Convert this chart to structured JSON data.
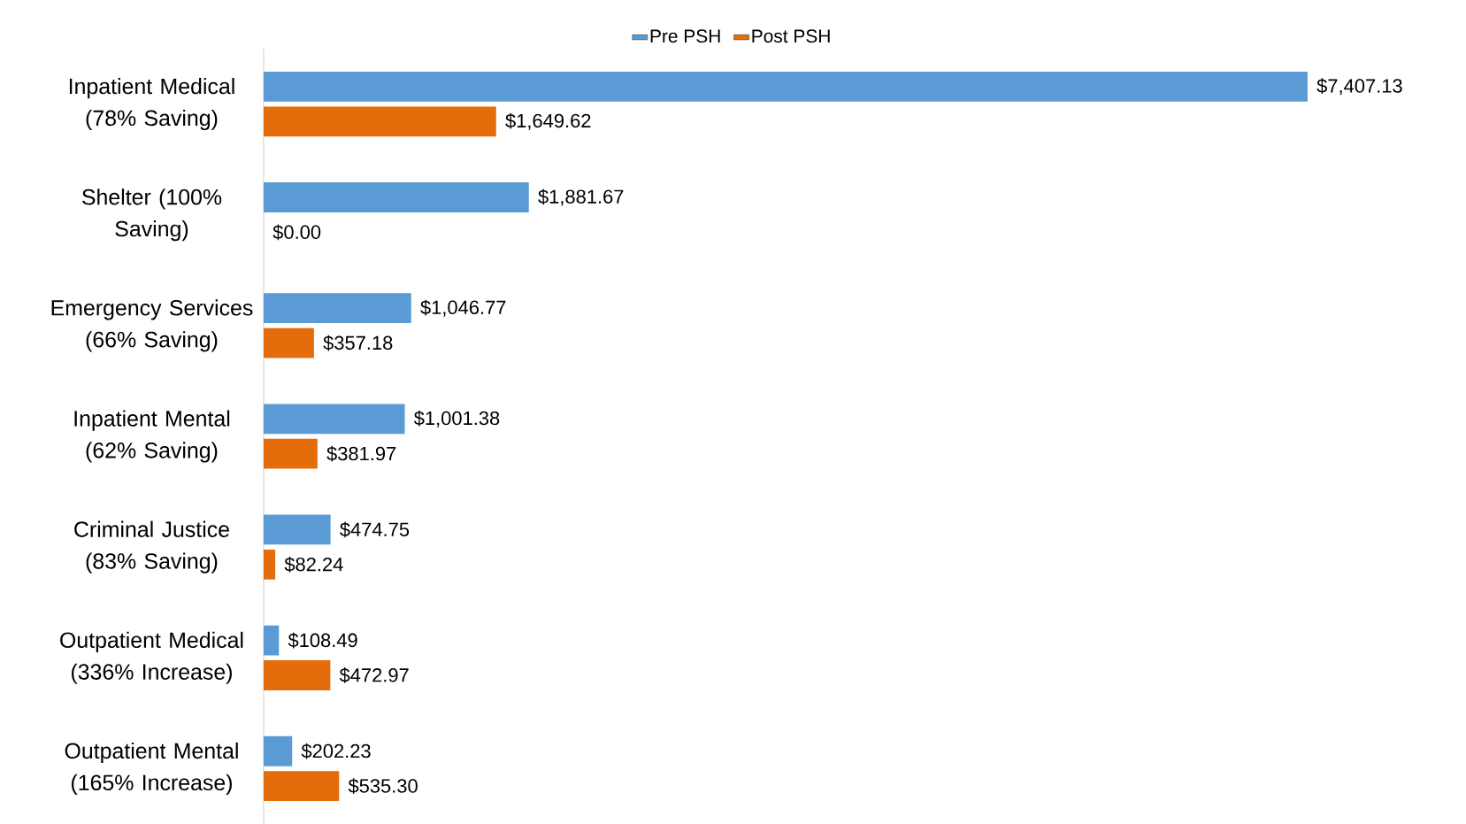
{
  "chart_data": {
    "type": "bar",
    "orientation": "horizontal",
    "legend": "top",
    "categories": [
      "Inpatient Medical (78% Saving)",
      "Shelter (100% Saving)",
      "Emergency Services (66% Saving)",
      "Inpatient Mental (62% Saving)",
      "Criminal Justice (83% Saving)",
      "Outpatient Medical (336% Increase)",
      "Outpatient Mental (165% Increase)"
    ],
    "series": [
      {
        "name": "Pre PSH",
        "color": "#5b9bd5",
        "values": [
          7407.13,
          1881.67,
          1046.77,
          1001.38,
          474.75,
          108.49,
          202.23
        ],
        "value_labels": [
          "$7,407.13",
          "$1,881.67",
          "$1,046.77",
          "$1,001.38",
          "$474.75",
          "$108.49",
          "$202.23"
        ]
      },
      {
        "name": "Post PSH",
        "color": "#e46c0a",
        "values": [
          1649.62,
          0.0,
          357.18,
          381.97,
          82.24,
          472.97,
          535.3
        ],
        "value_labels": [
          "$1,649.62",
          "$0.00",
          "$357.18",
          "$381.97",
          "$82.24",
          "$472.97",
          "$535.30"
        ]
      }
    ]
  }
}
